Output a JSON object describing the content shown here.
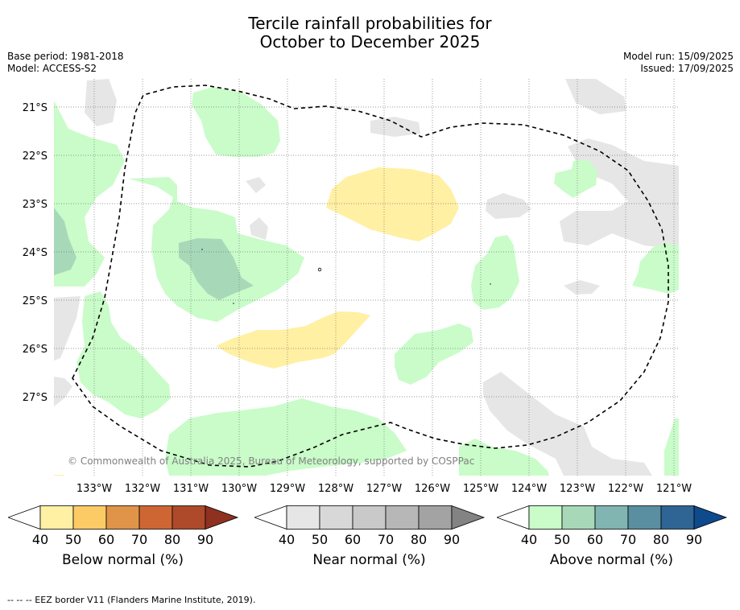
{
  "title_line1": "Tercile rainfall probabilities for",
  "title_line2": "October to December 2025",
  "base_period": "Base period: 1981-2018",
  "model": "Model: ACCESS-S2",
  "model_run": "Model run: 15/09/2025",
  "issued": "Issued: 17/09/2025",
  "copyright": "© Commonwealth of Australia 2025, Bureau of Meteorology, supported by COSPPac",
  "footnote": "--  --  -- EEZ border V11 (Flanders Marine Institute, 2019).",
  "map": {
    "lon_ticks": [
      "133°W",
      "132°W",
      "131°W",
      "130°W",
      "129°W",
      "128°W",
      "127°W",
      "126°W",
      "125°W",
      "124°W",
      "123°W",
      "122°W",
      "121°W"
    ],
    "lat_ticks": [
      "21°S",
      "22°S",
      "23°S",
      "24°S",
      "25°S",
      "26°S",
      "27°S"
    ]
  },
  "colorbars": [
    {
      "label": "Below normal (%)",
      "ticks": [
        "40",
        "50",
        "60",
        "70",
        "80",
        "90"
      ],
      "colors": [
        "#fff0a3",
        "#fdcb66",
        "#e09449",
        "#ce6634",
        "#ae4a2a",
        "#8e3121"
      ]
    },
    {
      "label": "Near normal (%)",
      "ticks": [
        "40",
        "50",
        "60",
        "70",
        "80",
        "90"
      ],
      "colors": [
        "#e6e6e6",
        "#d8d8d8",
        "#c9c9c9",
        "#b7b7b7",
        "#a3a3a3",
        "#838383"
      ]
    },
    {
      "label": "Above normal (%)",
      "ticks": [
        "40",
        "50",
        "60",
        "70",
        "80",
        "90"
      ],
      "colors": [
        "#c9fcc9",
        "#a7d9b9",
        "#80b5b2",
        "#5a8fa1",
        "#2f6594",
        "#0e4a8c"
      ]
    }
  ]
}
